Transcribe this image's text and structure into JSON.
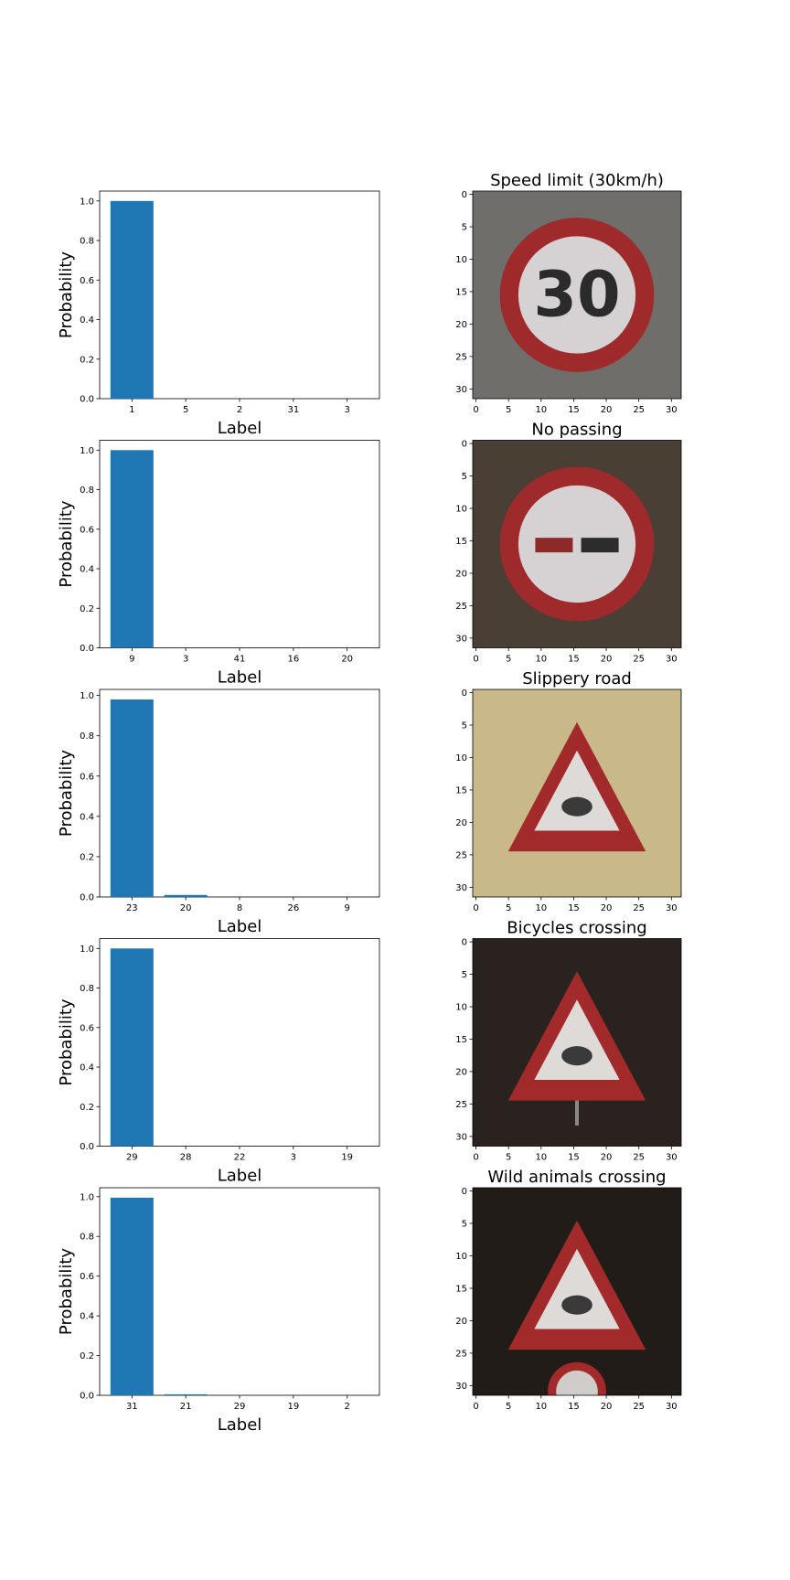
{
  "chart_data": [
    {
      "type": "bar",
      "categories": [
        "1",
        "5",
        "2",
        "31",
        "3"
      ],
      "values": [
        1.0,
        0.0,
        0.0,
        0.0,
        0.0
      ],
      "xlabel": "Label",
      "ylabel": "Probability",
      "ylim": [
        0,
        1.05
      ],
      "yticks": [
        "0.0",
        "0.2",
        "0.4",
        "0.6",
        "0.8",
        "1.0"
      ],
      "grid": false,
      "bar_color": "#1f77b4"
    },
    {
      "type": "bar",
      "categories": [
        "9",
        "3",
        "41",
        "16",
        "20"
      ],
      "values": [
        1.0,
        0.0,
        0.0,
        0.0,
        0.0
      ],
      "xlabel": "Label",
      "ylabel": "Probability",
      "ylim": [
        0,
        1.05
      ],
      "yticks": [
        "0.0",
        "0.2",
        "0.4",
        "0.6",
        "0.8",
        "1.0"
      ],
      "grid": false,
      "bar_color": "#1f77b4"
    },
    {
      "type": "bar",
      "categories": [
        "23",
        "20",
        "8",
        "26",
        "9"
      ],
      "values": [
        0.98,
        0.01,
        0.0,
        0.0,
        0.0
      ],
      "xlabel": "Label",
      "ylabel": "Probability",
      "ylim": [
        0,
        1.03
      ],
      "yticks": [
        "0.0",
        "0.2",
        "0.4",
        "0.6",
        "0.8",
        "1.0"
      ],
      "grid": false,
      "bar_color": "#1f77b4"
    },
    {
      "type": "bar",
      "categories": [
        "29",
        "28",
        "22",
        "3",
        "19"
      ],
      "values": [
        1.0,
        0.0,
        0.0,
        0.0,
        0.0
      ],
      "xlabel": "Label",
      "ylabel": "Probability",
      "ylim": [
        0,
        1.05
      ],
      "yticks": [
        "0.0",
        "0.2",
        "0.4",
        "0.6",
        "0.8",
        "1.0"
      ],
      "grid": false,
      "bar_color": "#1f77b4"
    },
    {
      "type": "bar",
      "categories": [
        "31",
        "21",
        "29",
        "19",
        "2"
      ],
      "values": [
        0.995,
        0.005,
        0.0,
        0.0,
        0.0
      ],
      "xlabel": "Label",
      "ylabel": "Probability",
      "ylim": [
        0,
        1.045
      ],
      "yticks": [
        "0.0",
        "0.2",
        "0.4",
        "0.6",
        "0.8",
        "1.0"
      ],
      "grid": false,
      "bar_color": "#1f77b4"
    }
  ],
  "images": [
    {
      "title": "Speed limit (30km/h)",
      "sign": "speed-limit-30-sign",
      "inner_text": "30",
      "background": "#6f6e6a",
      "xticks": [
        "0",
        "5",
        "10",
        "15",
        "20",
        "25",
        "30"
      ],
      "yticks": [
        "0",
        "5",
        "10",
        "15",
        "20",
        "25",
        "30"
      ]
    },
    {
      "title": "No passing",
      "sign": "no-passing-sign",
      "background": "#4a3f35",
      "xticks": [
        "0",
        "5",
        "10",
        "15",
        "20",
        "25",
        "30"
      ],
      "yticks": [
        "0",
        "5",
        "10",
        "15",
        "20",
        "25",
        "30"
      ]
    },
    {
      "title": "Slippery road",
      "sign": "slippery-road-sign",
      "background": "#c9b98a",
      "xticks": [
        "0",
        "5",
        "10",
        "15",
        "20",
        "25",
        "30"
      ],
      "yticks": [
        "0",
        "5",
        "10",
        "15",
        "20",
        "25",
        "30"
      ]
    },
    {
      "title": "Bicycles crossing",
      "sign": "bicycles-crossing-sign",
      "background": "#2a221e",
      "xticks": [
        "0",
        "5",
        "10",
        "15",
        "20",
        "25",
        "30"
      ],
      "yticks": [
        "0",
        "5",
        "10",
        "15",
        "20",
        "25",
        "30"
      ]
    },
    {
      "title": "Wild animals crossing",
      "sign": "wild-animals-crossing-sign",
      "background": "#221c19",
      "xticks": [
        "0",
        "5",
        "10",
        "15",
        "20",
        "25",
        "30"
      ],
      "yticks": [
        "0",
        "5",
        "10",
        "15",
        "20",
        "25",
        "30"
      ]
    }
  ]
}
